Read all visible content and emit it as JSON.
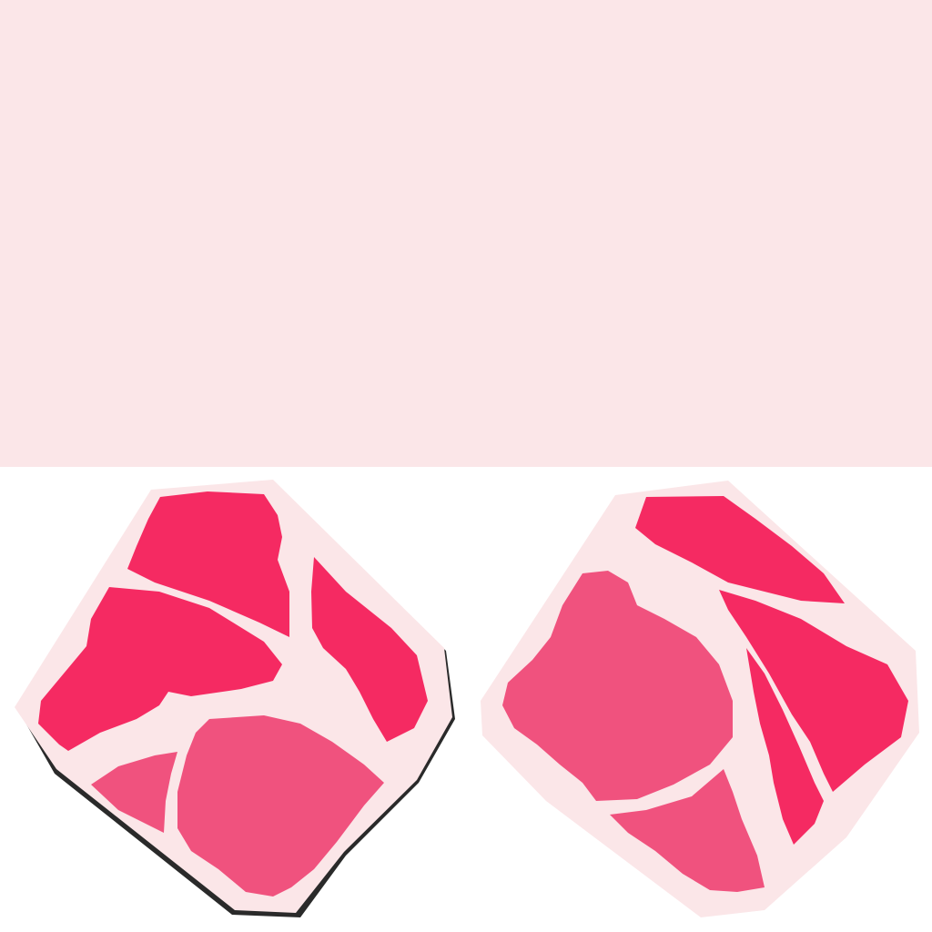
{
  "colors": {
    "background": "#ffffff",
    "base_pink": "#fbe6e8",
    "deep_pink": "#f52a62",
    "mid_pink": "#f0527e",
    "outline": "#2a2a2a"
  },
  "band": {
    "fill_color": "#fbe6e8"
  },
  "gems": [
    {
      "name": "left-gem",
      "shape": "rotated-square"
    },
    {
      "name": "right-gem",
      "shape": "rotated-square"
    }
  ]
}
